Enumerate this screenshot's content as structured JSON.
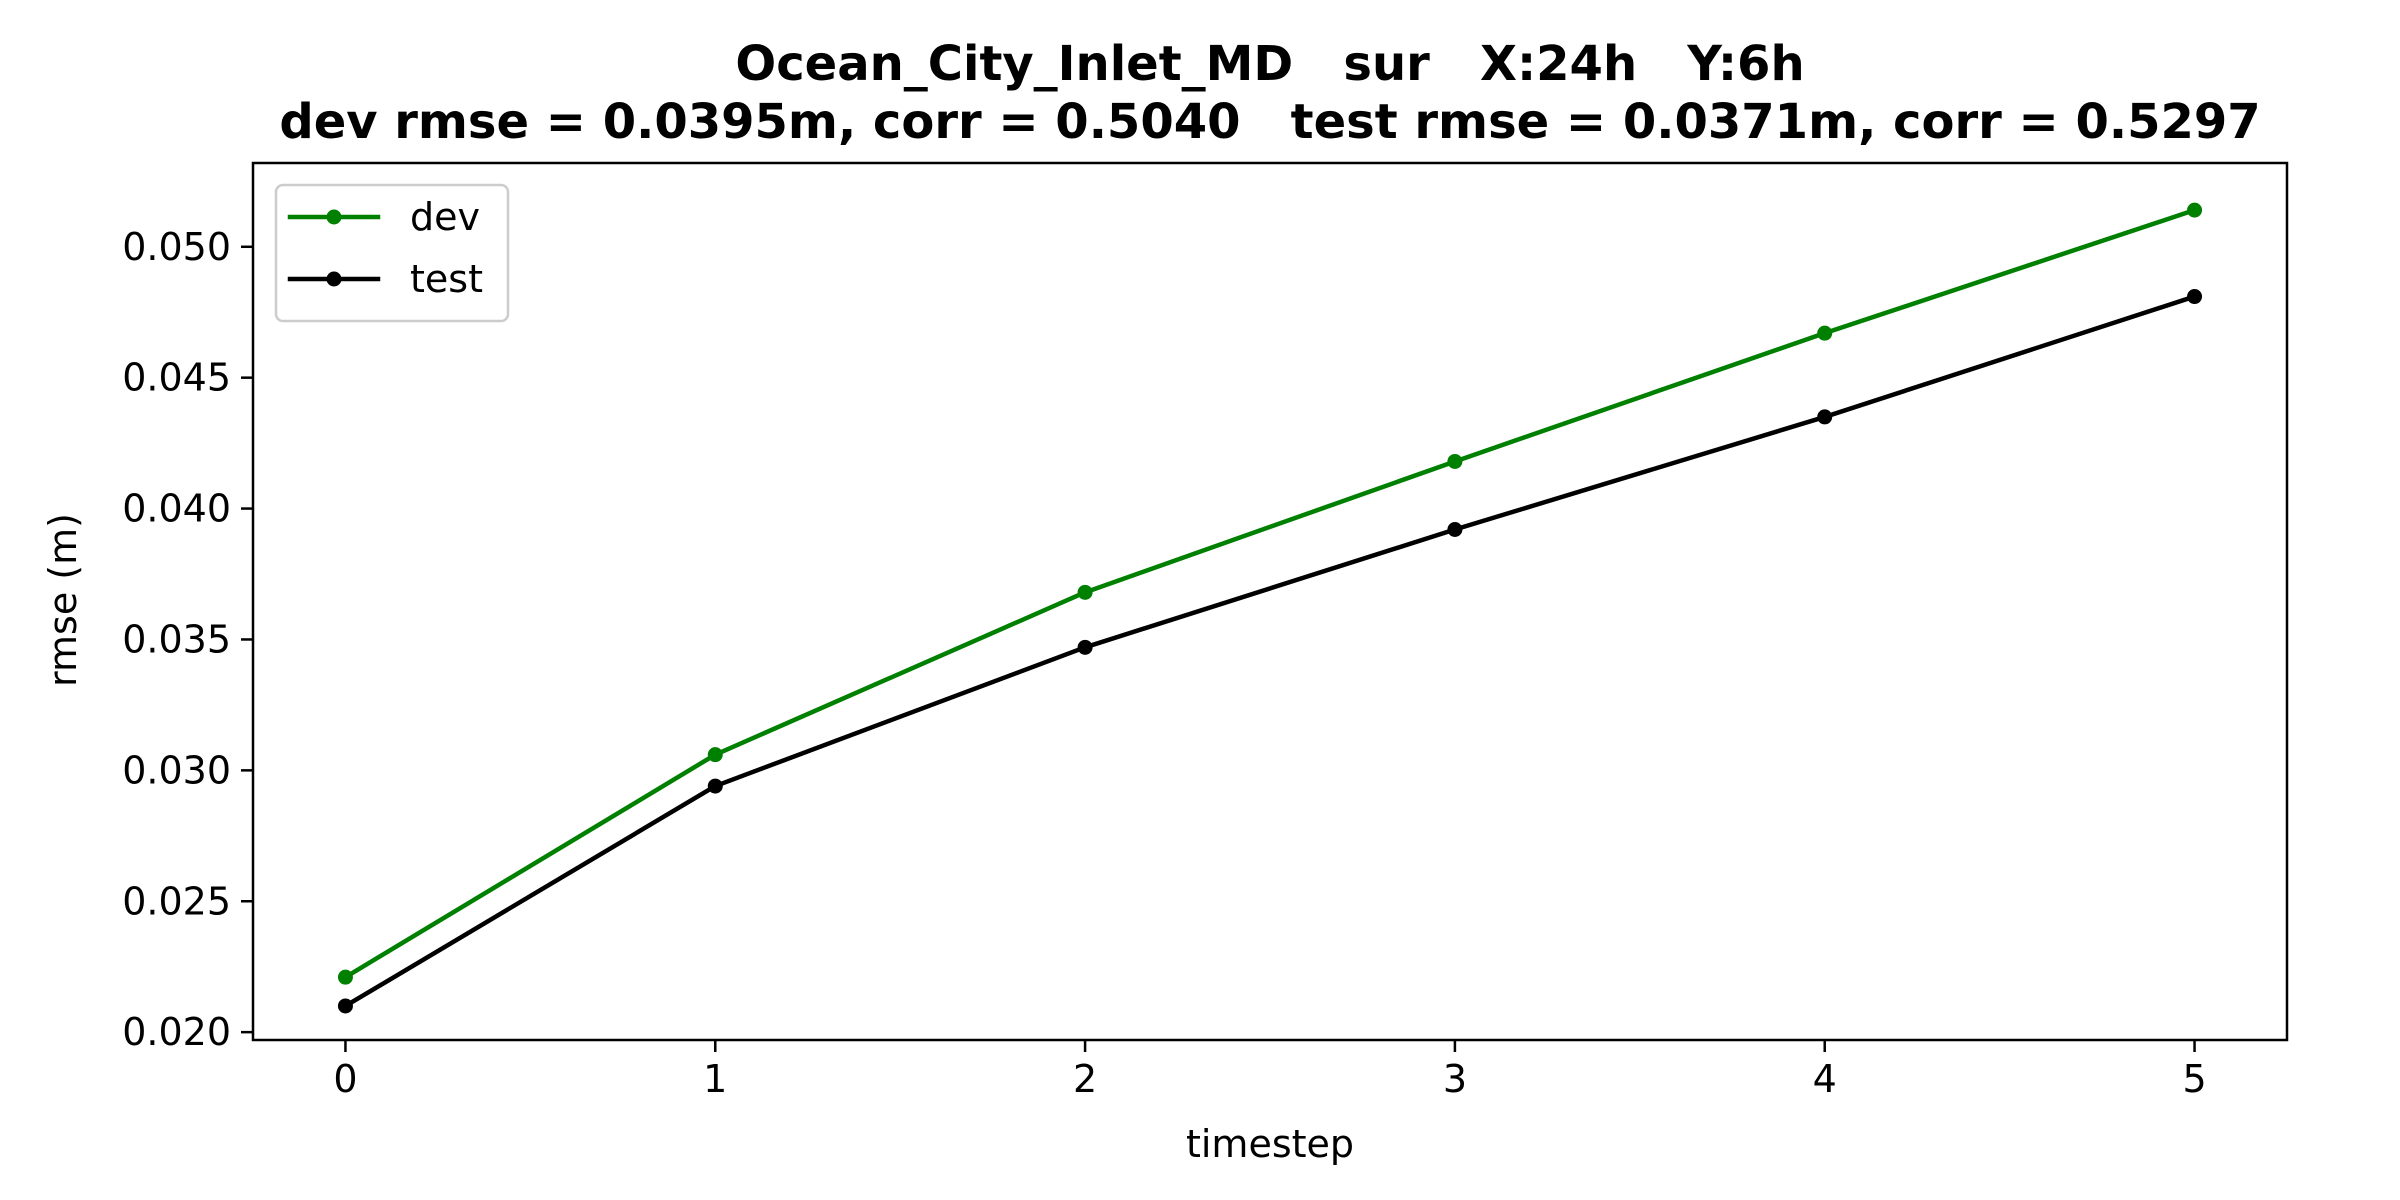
{
  "chart_data": {
    "type": "line",
    "title": "Ocean_City_Inlet_MD   sur   X:24h   Y:6h",
    "subtitle": "dev rmse = 0.0395m, corr = 0.5040   test rmse = 0.0371m, corr = 0.5297",
    "xlabel": "timestep",
    "ylabel": "rmse (m)",
    "x": [
      0,
      1,
      2,
      3,
      4,
      5
    ],
    "x_tick_labels": [
      "0",
      "1",
      "2",
      "3",
      "4",
      "5"
    ],
    "xlim": [
      -0.25,
      5.25
    ],
    "y_ticks": [
      0.02,
      0.025,
      0.03,
      0.035,
      0.04,
      0.045,
      0.05
    ],
    "y_tick_labels": [
      "0.020",
      "0.025",
      "0.030",
      "0.035",
      "0.040",
      "0.045",
      "0.050"
    ],
    "ylim": [
      0.0197,
      0.0532
    ],
    "grid": false,
    "legend_position": "upper-left",
    "series": [
      {
        "name": "dev",
        "color": "#008000",
        "values": [
          0.0221,
          0.0306,
          0.0368,
          0.0418,
          0.0467,
          0.0514
        ]
      },
      {
        "name": "test",
        "color": "#000000",
        "values": [
          0.021,
          0.0294,
          0.0347,
          0.0392,
          0.0435,
          0.0481
        ]
      }
    ]
  }
}
